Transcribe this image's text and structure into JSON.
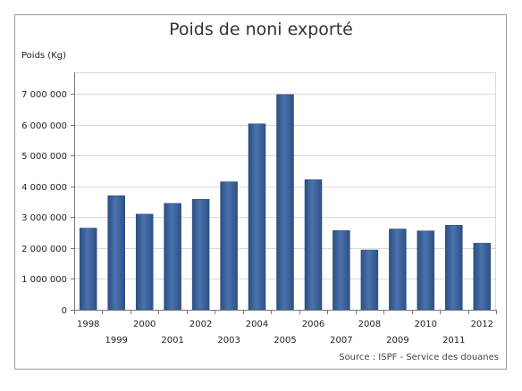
{
  "chart_data": {
    "type": "bar",
    "title": "Poids de noni exporté",
    "ylabel": "Poids (Kg)",
    "xlabel": "",
    "categories": [
      "1998",
      "1999",
      "2000",
      "2001",
      "2002",
      "2003",
      "2004",
      "2005",
      "2006",
      "2007",
      "2008",
      "2009",
      "2010",
      "2011",
      "2012"
    ],
    "values": [
      2650000,
      3700000,
      3100000,
      3450000,
      3580000,
      4150000,
      6030000,
      6980000,
      4220000,
      2570000,
      1940000,
      2620000,
      2560000,
      2740000,
      2160000
    ],
    "ylim": [
      0,
      7700000
    ],
    "yticks": [
      0,
      1000000,
      2000000,
      3000000,
      4000000,
      5000000,
      6000000,
      7000000
    ],
    "ytick_labels": [
      "0",
      "1 000 000",
      "2 000 000",
      "3 000 000",
      "4 000 000",
      "5 000 000",
      "6 000 000",
      "7 000 000"
    ],
    "grid": true,
    "bar_color": "#3c6198",
    "source": "Source : ISPF - Service des douanes"
  }
}
